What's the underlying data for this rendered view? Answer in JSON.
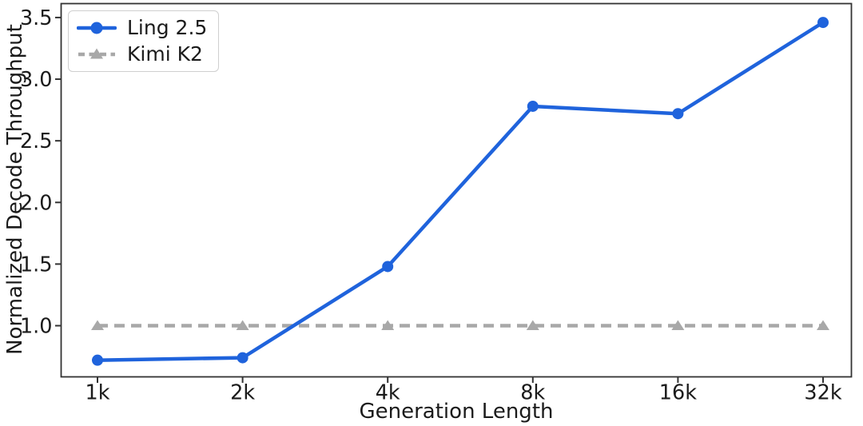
{
  "chart_data": {
    "type": "line",
    "title": "",
    "xlabel": "Generation Length",
    "ylabel": "Normalized Decode Throughput",
    "categories": [
      "1k",
      "2k",
      "4k",
      "8k",
      "16k",
      "32k"
    ],
    "series": [
      {
        "name": "Ling 2.5",
        "values": [
          0.72,
          0.74,
          1.48,
          2.78,
          2.72,
          3.46
        ],
        "color": "#1f63dc",
        "line_style": "solid",
        "marker": "circle"
      },
      {
        "name": "Kimi K2",
        "values": [
          1.0,
          1.0,
          1.0,
          1.0,
          1.0,
          1.0
        ],
        "color": "#a8a8a8",
        "line_style": "dashed",
        "marker": "triangle"
      }
    ],
    "yticks": [
      1.0,
      1.5,
      2.0,
      2.5,
      3.0,
      3.5
    ],
    "ylim": [
      0.585,
      3.613
    ],
    "grid": false,
    "legend_position": "upper-left",
    "axis_color": "#333333",
    "text_color": "#1b1b1b"
  }
}
